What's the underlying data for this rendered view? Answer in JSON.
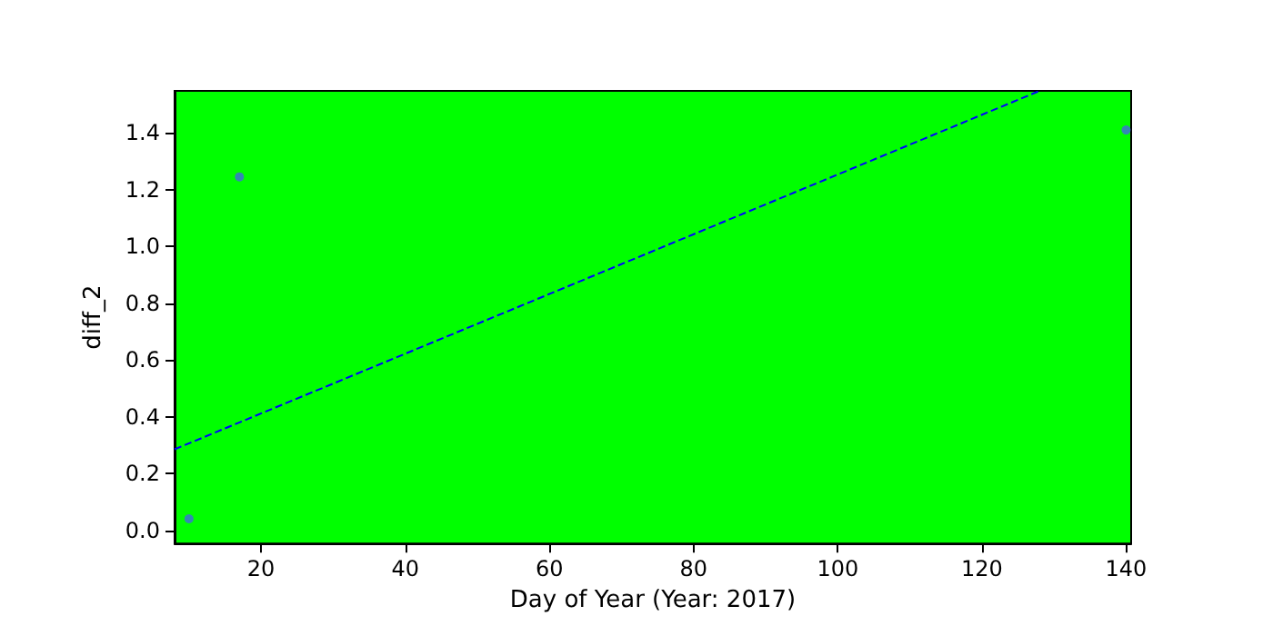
{
  "chart_data": {
    "type": "scatter",
    "xlabel": "Day of Year (Year: 2017)",
    "ylabel": "diff_2",
    "marker": "circle",
    "grid": false,
    "xlim": [
      8,
      140.7
    ],
    "ylim": [
      -0.047,
      1.548
    ],
    "xticks": [
      20,
      40,
      60,
      80,
      100,
      120,
      140
    ],
    "yticks": [
      {
        "value": 0,
        "label": "0.0"
      },
      {
        "value": 0.2,
        "label": "0.2"
      },
      {
        "value": 0.4,
        "label": "0.4"
      },
      {
        "value": 0.6,
        "label": "0.6"
      },
      {
        "value": 0.8,
        "label": "0.8"
      },
      {
        "value": 1,
        "label": "1.0"
      },
      {
        "value": 1.2,
        "label": "1.2"
      },
      {
        "value": 1.4,
        "label": "1.4"
      }
    ],
    "series": [
      {
        "color": "#4169e1",
        "x": [
          10,
          17,
          140
        ],
        "values": [
          0.04,
          1.245,
          1.41
        ]
      },
      {
        "type": "line",
        "color": "#0000ff",
        "line_style": "dashed",
        "marker": "none",
        "x": [
          8,
          128
        ],
        "values": [
          0.285,
          1.548
        ]
      }
    ]
  }
}
